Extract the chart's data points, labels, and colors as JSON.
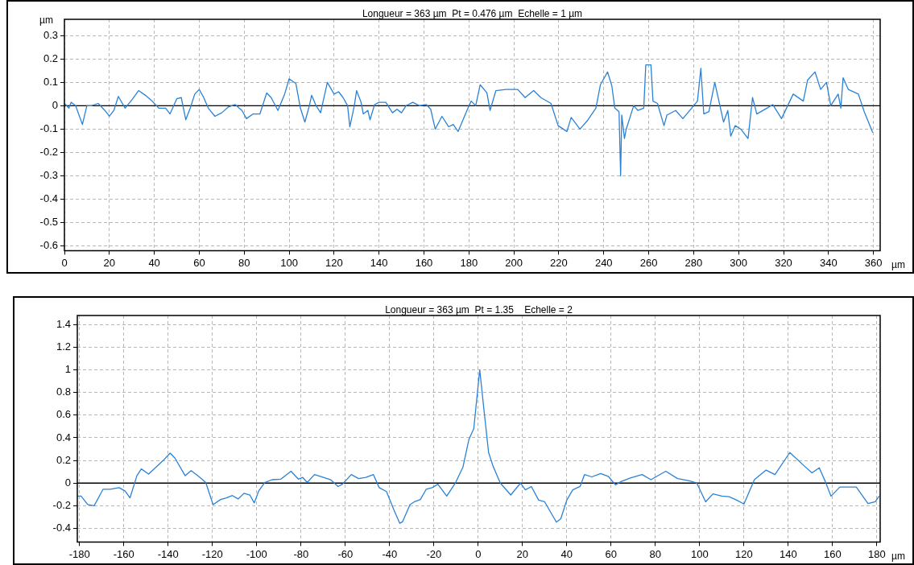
{
  "chart_data": [
    {
      "type": "line",
      "title": "Longueur = 363 µm  Pt = 0.476 µm  Echelle = 1 µm",
      "ylabel": "µm",
      "xlabel": "µm",
      "xlim": [
        0,
        363
      ],
      "ylim": [
        -0.62,
        0.37
      ],
      "xticks": [
        0,
        20,
        40,
        60,
        80,
        100,
        120,
        140,
        160,
        180,
        200,
        220,
        240,
        260,
        280,
        300,
        320,
        340,
        360
      ],
      "yticks": [
        -0.6,
        -0.5,
        -0.4,
        -0.3,
        -0.2,
        -0.1,
        0,
        0.1,
        0.2,
        0.3
      ],
      "grid": true,
      "legend": false,
      "marker": "none",
      "line_style": "solid",
      "ref_lines": [
        {
          "axis": "y",
          "value": 0,
          "color": "#000000"
        }
      ],
      "x": [
        0,
        2,
        3,
        5,
        8,
        10,
        12,
        15,
        18,
        20,
        22,
        24,
        27,
        30,
        33,
        36,
        39,
        42,
        45,
        47,
        50,
        52,
        54,
        56,
        58,
        60,
        62,
        64,
        67,
        70,
        73,
        76,
        79,
        81,
        84,
        87,
        90,
        92,
        95,
        98,
        100,
        103,
        105,
        107,
        109,
        110,
        112,
        114,
        117,
        120,
        122,
        124,
        126,
        127,
        129,
        130,
        132,
        133,
        135,
        136,
        138,
        140,
        143,
        146,
        148,
        150,
        152,
        155,
        158,
        161,
        163,
        165,
        168,
        171,
        173,
        175.2,
        177.8,
        180,
        181,
        183,
        185,
        188,
        189.4,
        192,
        196.5,
        201.7,
        205,
        208.8,
        212,
        216.5,
        219.7,
        223.6,
        225.5,
        229.4,
        232.6,
        236.5,
        238.5,
        241.7,
        243.6,
        244.9,
        246.8,
        247.5,
        248,
        249.2,
        250,
        253.3,
        255.2,
        257.8,
        258.7,
        261,
        261.9,
        263.9,
        266.8,
        268.1,
        272,
        275.2,
        279.1,
        281.7,
        283.2,
        284.5,
        286.8,
        289.4,
        293.3,
        295.2,
        296.5,
        298.5,
        301,
        304.2,
        306.2,
        308.1,
        312.6,
        315.2,
        319.1,
        324.3,
        328.8,
        330.7,
        334,
        336.5,
        339.1,
        341,
        344.3,
        345.5,
        346.5,
        348.8,
        353.3,
        355.9,
        359.7
      ],
      "series": [
        {
          "color": "#2a82d6",
          "values": [
            0.01,
            -0.01,
            0.015,
            0,
            -0.08,
            0,
            0,
            0.01,
            -0.02,
            -0.045,
            -0.02,
            0.04,
            -0.01,
            0.025,
            0.065,
            0.045,
            0.02,
            -0.01,
            -0.01,
            -0.035,
            0.03,
            0.035,
            -0.06,
            -0.01,
            0.05,
            0.07,
            0.035,
            -0.01,
            -0.045,
            -0.03,
            -0.005,
            0.005,
            -0.02,
            -0.055,
            -0.035,
            -0.035,
            0.055,
            0.035,
            -0.02,
            0.05,
            0.115,
            0.095,
            -0.01,
            -0.07,
            0,
            0.045,
            0,
            -0.03,
            0.1,
            0.05,
            0.06,
            0.035,
            0,
            -0.09,
            0,
            0.065,
            0.015,
            -0.035,
            -0.02,
            -0.06,
            0.005,
            0.015,
            0.015,
            -0.03,
            -0.015,
            -0.03,
            0,
            0.015,
            0,
            0.005,
            -0.015,
            -0.1,
            -0.045,
            -0.09,
            -0.08,
            -0.11,
            -0.05,
            0,
            0.02,
            0,
            0.09,
            0.055,
            -0.02,
            0.065,
            0.07,
            0.07,
            0.035,
            0.065,
            0.035,
            0.01,
            -0.085,
            -0.11,
            -0.05,
            -0.1,
            -0.065,
            -0.01,
            0.09,
            0.145,
            0.085,
            -0.01,
            -0.025,
            -0.3,
            -0.04,
            -0.14,
            -0.1,
            0,
            -0.02,
            -0.01,
            0.175,
            0.175,
            0.02,
            0.01,
            -0.085,
            -0.04,
            -0.02,
            -0.055,
            -0.01,
            0.02,
            0.16,
            -0.035,
            -0.025,
            0.1,
            -0.07,
            -0.02,
            -0.13,
            -0.085,
            -0.1,
            -0.14,
            0.035,
            -0.035,
            -0.01,
            0.005,
            -0.055,
            0.05,
            0.02,
            0.11,
            0.145,
            0.07,
            0.1,
            0,
            0.05,
            -0.01,
            0.12,
            0.07,
            0.05,
            -0.025,
            -0.115
          ]
        }
      ]
    },
    {
      "type": "line",
      "title": "Longueur = 363 µm  Pt = 1.35    Echelle = 2",
      "xlabel": "µm",
      "xlim": [
        -181,
        181.5
      ],
      "ylim": [
        -0.52,
        1.48
      ],
      "xticks": [
        -180,
        -160,
        -140,
        -120,
        -100,
        -80,
        -60,
        -40,
        -20,
        0,
        20,
        40,
        60,
        80,
        100,
        120,
        140,
        160,
        180
      ],
      "yticks": [
        -0.4,
        -0.2,
        0,
        0.2,
        0.4,
        0.6,
        0.8,
        1,
        1.2,
        1.4
      ],
      "grid": true,
      "legend": false,
      "marker": "none",
      "line_style": "solid",
      "ref_lines": [
        {
          "axis": "y",
          "value": 0,
          "color": "#000000"
        }
      ],
      "x": [
        -181,
        -179.3,
        -176.3,
        -173.4,
        -169.4,
        -166.1,
        -162.1,
        -159.4,
        -157.2,
        -154.1,
        -152.1,
        -148.8,
        -145.5,
        -142.2,
        -139.1,
        -136.9,
        -132.3,
        -129.6,
        -125.6,
        -123,
        -119.7,
        -116.3,
        -113.7,
        -111,
        -108.4,
        -105.7,
        -103.1,
        -101.1,
        -99.1,
        -96.4,
        -93.1,
        -89.1,
        -84.5,
        -81.2,
        -79.2,
        -77.2,
        -73.9,
        -69.9,
        -66.6,
        -63.3,
        -61.3,
        -57.3,
        -54,
        -50.7,
        -47.3,
        -44.7,
        -41.4,
        -38.1,
        -35.4,
        -34.1,
        -30.8,
        -28.8,
        -26.1,
        -23.5,
        -20.8,
        -18.2,
        -14.2,
        -10.2,
        -6.9,
        -4.2,
        -2,
        0.7,
        2.7,
        4.7,
        6.7,
        10,
        14.7,
        19.1,
        21.3,
        24,
        27.3,
        30,
        35.3,
        37.3,
        40,
        42.7,
        46,
        48,
        51.3,
        55.3,
        58.7,
        62,
        64.7,
        68.7,
        74,
        78,
        80.7,
        84.7,
        90,
        95.3,
        98.7,
        102.7,
        106,
        110,
        113.3,
        116.7,
        120,
        124.7,
        130,
        134,
        140.7,
        147.3,
        150.7,
        154,
        156.7,
        159.3,
        163.3,
        170.7,
        176,
        179.3,
        181
      ],
      "series": [
        {
          "color": "#2a82d6",
          "values": [
            -0.115,
            -0.115,
            -0.19,
            -0.2,
            -0.055,
            -0.055,
            -0.04,
            -0.07,
            -0.13,
            0.065,
            0.125,
            0.08,
            0.14,
            0.2,
            0.265,
            0.22,
            0.065,
            0.11,
            0.05,
            0.005,
            -0.19,
            -0.145,
            -0.13,
            -0.11,
            -0.14,
            -0.09,
            -0.105,
            -0.175,
            -0.07,
            0.005,
            0.03,
            0.035,
            0.105,
            0.035,
            0.05,
            0.005,
            0.075,
            0.05,
            0.03,
            -0.03,
            -0.01,
            0.075,
            0.04,
            0.05,
            0.075,
            -0.04,
            -0.075,
            -0.235,
            -0.355,
            -0.34,
            -0.19,
            -0.165,
            -0.145,
            -0.055,
            -0.04,
            -0.01,
            -0.115,
            0.005,
            0.14,
            0.385,
            0.48,
            1,
            0.63,
            0.27,
            0.15,
            0,
            -0.105,
            0,
            -0.06,
            -0.03,
            -0.15,
            -0.165,
            -0.345,
            -0.315,
            -0.15,
            -0.06,
            -0.03,
            0.075,
            0.055,
            0.085,
            0.06,
            -0.015,
            0.015,
            0.045,
            0.075,
            0.03,
            0.06,
            0.105,
            0.04,
            0.02,
            0,
            -0.165,
            -0.095,
            -0.115,
            -0.12,
            -0.15,
            -0.185,
            0.03,
            0.115,
            0.075,
            0.27,
            0.15,
            0.09,
            0.135,
            0.015,
            -0.115,
            -0.035,
            -0.035,
            -0.18,
            -0.165,
            -0.115
          ]
        }
      ]
    }
  ]
}
